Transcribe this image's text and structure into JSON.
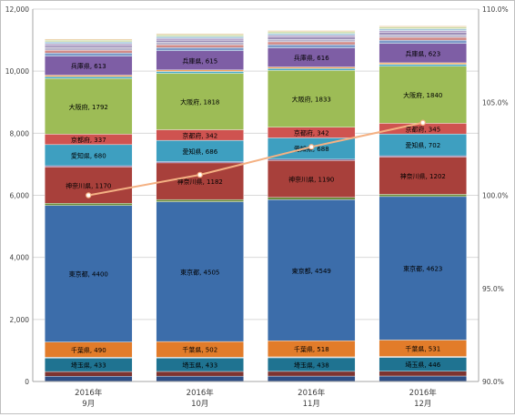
{
  "chart_data": {
    "type": "bar",
    "stacked": true,
    "categories": [
      "2016年\n9月",
      "2016年\n10月",
      "2016年\n11月",
      "2016年\n12月"
    ],
    "y_left": {
      "lim": [
        0,
        12000
      ],
      "ticks": [
        0,
        2000,
        4000,
        6000,
        8000,
        10000,
        12000
      ],
      "tick_labels": [
        "0",
        "2,000",
        "4,000",
        "6,000",
        "8,000",
        "10,000",
        "12,000"
      ]
    },
    "y_right": {
      "lim": [
        90,
        110
      ],
      "ticks": [
        90,
        95,
        100,
        105,
        110
      ],
      "tick_labels": [
        "90.0%",
        "95.0%",
        "100.0%",
        "105.0%",
        "110.0%"
      ]
    },
    "grid": "horizontal",
    "series": [
      {
        "values": [
          170,
          172,
          174,
          176
        ],
        "color": "#2e4f86"
      },
      {
        "values": [
          150,
          151,
          152,
          154
        ],
        "color": "#7d3330"
      },
      {
        "name": "埼玉県",
        "values": [
          433,
          433,
          438,
          446
        ],
        "color": "#1f7391"
      },
      {
        "values": [
          30,
          30,
          30,
          30
        ],
        "color": "#c0c0c0"
      },
      {
        "name": "千葉県",
        "values": [
          490,
          502,
          518,
          531
        ],
        "color": "#e27c2a"
      },
      {
        "name": "東京都",
        "values": [
          4400,
          4505,
          4549,
          4623
        ],
        "color": "#3c6daa"
      },
      {
        "values": [
          70,
          70,
          71,
          72
        ],
        "color": "#6a8c3a"
      },
      {
        "name": "神奈川県",
        "values": [
          1170,
          1182,
          1190,
          1202
        ],
        "color": "#a8403b"
      },
      {
        "values": [
          40,
          40,
          40,
          40
        ],
        "color": "#7a5a95"
      },
      {
        "name": "愛知県",
        "values": [
          680,
          686,
          688,
          702
        ],
        "color": "#3e9fc0"
      },
      {
        "name": "京都府",
        "values": [
          337,
          342,
          342,
          345
        ],
        "color": "#cf5350"
      },
      {
        "name": "大阪府",
        "values": [
          1792,
          1818,
          1833,
          1840
        ],
        "color": "#9dbc56"
      },
      {
        "values": [
          60,
          60,
          60,
          60
        ],
        "color": "#49acc6"
      },
      {
        "values": [
          50,
          50,
          50,
          50
        ],
        "color": "#f4a85a"
      },
      {
        "name": "兵庫県",
        "values": [
          613,
          615,
          616,
          623
        ],
        "color": "#7e5ea5"
      },
      {
        "values": [
          100,
          102,
          103,
          104
        ],
        "color": "#7d9ac8"
      },
      {
        "values": [
          90,
          91,
          92,
          93
        ],
        "color": "#d18a87"
      },
      {
        "values": [
          80,
          80,
          81,
          82
        ],
        "color": "#b8b4cc"
      },
      {
        "values": [
          70,
          70,
          71,
          72
        ],
        "color": "#9d8fb8"
      },
      {
        "values": [
          60,
          60,
          60,
          61
        ],
        "color": "#b4a3ca"
      },
      {
        "values": [
          60,
          60,
          61,
          62
        ],
        "color": "#a6c9dc"
      },
      {
        "values": [
          50,
          50,
          51,
          51
        ],
        "color": "#c9dba6"
      },
      {
        "values": [
          40,
          40,
          41,
          41
        ],
        "color": "#ead1a6"
      }
    ],
    "line": {
      "axis": "right",
      "values": [
        100.0,
        101.1,
        102.6,
        103.9
      ],
      "color": "#f4b183",
      "marker_color": "#ffffff"
    }
  }
}
